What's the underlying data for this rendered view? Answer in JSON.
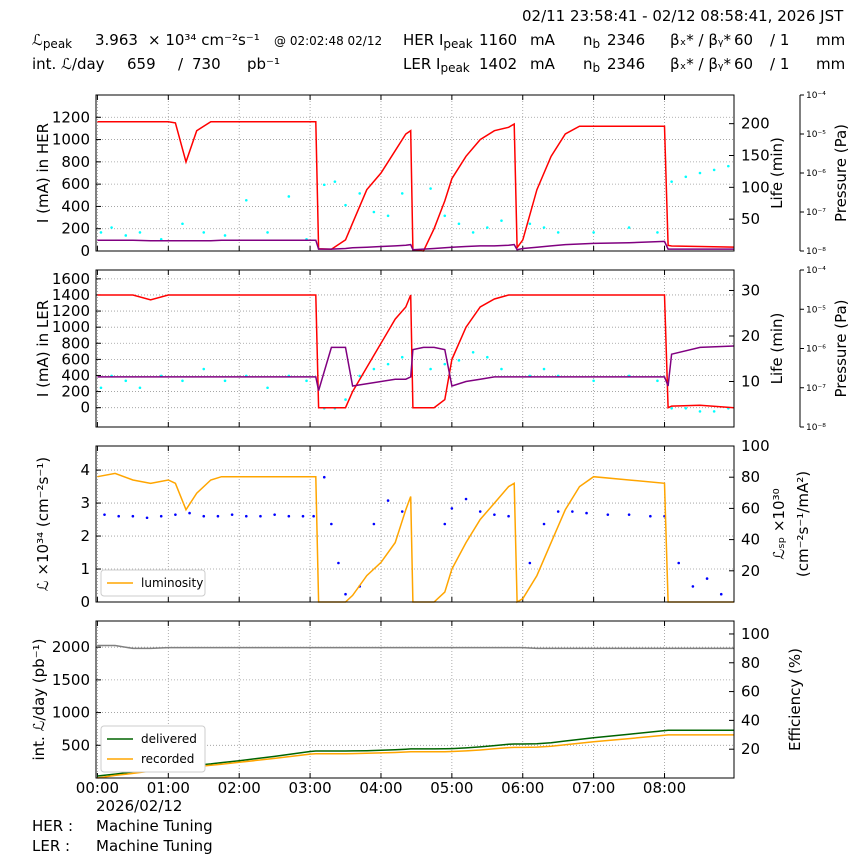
{
  "header": {
    "time_range": "02/11 23:58:41 - 02/12 08:58:41, 2026 JST",
    "lpeak": {
      "label": "ℒ",
      "sub": "peak",
      "value": 3.963,
      "unit": "× 10³⁴ cm⁻²s⁻¹",
      "time": "@ 02:02:48 02/12"
    },
    "int_lumi": {
      "label": "int. ℒ/day",
      "recorded": 659,
      "sep": "/",
      "delivered": 730,
      "unit": "pb⁻¹"
    },
    "her": {
      "label": "HER I",
      "sub": "peak",
      "current": 1160,
      "unit": "mA",
      "nb_label": "n",
      "nb_sub": "b",
      "nb": 2346,
      "beta_label": "βₓ* / βᵧ*",
      "beta_x": 60,
      "beta_y": "/ 1",
      "beta_unit": "mm"
    },
    "ler": {
      "label": "LER I",
      "sub": "peak",
      "current": 1402,
      "unit": "mA",
      "nb_label": "n",
      "nb_sub": "b",
      "nb": 2346,
      "beta_label": "βₓ* / βᵧ*",
      "beta_x": 60,
      "beta_y": "/ 1",
      "beta_unit": "mm"
    }
  },
  "footer": {
    "date": "2026/02/12",
    "her_label": "HER :",
    "her_status": "Machine Tuning",
    "ler_label": "LER :",
    "ler_status": "Machine Tuning"
  },
  "chart_data": [
    {
      "type": "line",
      "ylabel": "I (mA) in HER",
      "y2label": "Life (min)",
      "y3label": "Pressure (Pa)",
      "grid": true,
      "x": [
        0,
        0.25,
        0.5,
        0.75,
        1,
        1.1,
        1.25,
        1.4,
        1.6,
        1.75,
        2,
        2.5,
        3,
        3.08,
        3.12,
        3.3,
        3.5,
        3.6,
        3.8,
        4,
        4.2,
        4.35,
        4.42,
        4.45,
        4.6,
        4.75,
        4.9,
        5,
        5.2,
        5.4,
        5.6,
        5.8,
        5.88,
        5.92,
        6,
        6.2,
        6.4,
        6.6,
        6.8,
        7,
        7.5,
        8,
        8.05,
        8.1,
        8.5,
        8.98
      ],
      "xlim": [
        -0.02,
        8.98
      ],
      "xticks": [
        0,
        1,
        2,
        3,
        4,
        5,
        6,
        7,
        8
      ],
      "ylim": [
        0,
        1400
      ],
      "yticks": [
        0,
        200,
        400,
        600,
        800,
        1000,
        1200
      ],
      "y2lim": [
        0,
        245
      ],
      "y2ticks": [
        50,
        100,
        150,
        200
      ],
      "y3lim": [
        1e-08,
        0.0001
      ],
      "y3log": true,
      "y3ticks": [
        {
          "value": 1e-08,
          "label": "10⁻⁸"
        },
        {
          "value": 1e-07,
          "label": "10⁻⁷"
        },
        {
          "value": 1e-06,
          "label": "10⁻⁶"
        },
        {
          "value": 1e-05,
          "label": "10⁻⁵"
        },
        {
          "value": 0.0001,
          "label": "10⁻⁴"
        }
      ],
      "series": [
        {
          "color": "#00ffff",
          "axis": "y3",
          "mode": "markers",
          "x": [
            0.05,
            0.2,
            0.4,
            0.6,
            0.9,
            1.2,
            1.5,
            1.8,
            2.1,
            2.4,
            2.7,
            2.95,
            3.2,
            3.35,
            3.5,
            3.7,
            3.9,
            4.1,
            4.3,
            4.7,
            4.9,
            5.1,
            5.3,
            5.5,
            5.7,
            6.1,
            6.3,
            6.5,
            7.0,
            7.5,
            7.9,
            8.1,
            8.3,
            8.5,
            8.7,
            8.9
          ],
          "values": [
            3e-08,
            4e-08,
            2.5e-08,
            3e-08,
            2e-08,
            5e-08,
            3e-08,
            2.5e-08,
            2e-07,
            3e-08,
            2.5e-07,
            2e-08,
            5e-07,
            6e-07,
            1.5e-07,
            3e-07,
            1e-07,
            8e-08,
            3e-07,
            4e-07,
            8e-08,
            5e-08,
            3e-08,
            4e-08,
            6e-08,
            5e-08,
            4e-08,
            3e-08,
            3e-08,
            4e-08,
            3e-08,
            6e-07,
            8e-07,
            1e-06,
            1.2e-06,
            1.5e-06
          ]
        },
        {
          "color": "#ff0000",
          "axis": "y",
          "values": [
            1160,
            1160,
            1160,
            1160,
            1160,
            1150,
            800,
            1080,
            1160,
            1160,
            1160,
            1160,
            1160,
            1160,
            20,
            15,
            100,
            250,
            550,
            700,
            900,
            1050,
            1080,
            10,
            0,
            200,
            450,
            650,
            850,
            1000,
            1080,
            1110,
            1140,
            30,
            100,
            550,
            850,
            1050,
            1120,
            1120,
            1120,
            1120,
            50,
            45,
            40,
            35
          ]
        },
        {
          "color": "#800080",
          "axis": "y2",
          "values": [
            17,
            17,
            17,
            16,
            16,
            16,
            16,
            16,
            16,
            17,
            17,
            17,
            17,
            17,
            3,
            3,
            4,
            5,
            6,
            7,
            8,
            9,
            10,
            2,
            3,
            4,
            5,
            6,
            7,
            8,
            8,
            9,
            10,
            2,
            4,
            6,
            8,
            10,
            11,
            12,
            13,
            15,
            3,
            3,
            3,
            3
          ]
        }
      ]
    },
    {
      "type": "line",
      "ylabel": "I (mA) in LER",
      "y2label": "Life (min)",
      "y3label": "Pressure (Pa)",
      "grid": true,
      "x": [
        0,
        0.25,
        0.5,
        0.75,
        1,
        1.1,
        1.25,
        1.4,
        1.6,
        1.75,
        2,
        2.5,
        3,
        3.08,
        3.12,
        3.3,
        3.5,
        3.6,
        3.8,
        4,
        4.2,
        4.35,
        4.42,
        4.45,
        4.6,
        4.75,
        4.9,
        5,
        5.2,
        5.4,
        5.6,
        5.8,
        5.88,
        5.92,
        6,
        6.2,
        6.4,
        6.6,
        6.8,
        7,
        7.5,
        8,
        8.05,
        8.1,
        8.5,
        8.98
      ],
      "xlim": [
        -0.02,
        8.98
      ],
      "xticks": [
        0,
        1,
        2,
        3,
        4,
        5,
        6,
        7,
        8
      ],
      "ylim": [
        -240,
        1710
      ],
      "yticks": [
        0,
        200,
        400,
        600,
        800,
        1000,
        1200,
        1400,
        1600
      ],
      "y2lim": [
        0,
        34.5
      ],
      "y2ticks": [
        10,
        20,
        30
      ],
      "y3lim": [
        1e-08,
        0.0001
      ],
      "y3log": true,
      "y3ticks": [
        {
          "value": 1e-08,
          "label": "10⁻⁸"
        },
        {
          "value": 1e-07,
          "label": "10⁻⁷"
        },
        {
          "value": 1e-06,
          "label": "10⁻⁶"
        },
        {
          "value": 1e-05,
          "label": "10⁻⁵"
        },
        {
          "value": 0.0001,
          "label": "10⁻⁴"
        }
      ],
      "series": [
        {
          "color": "#00ffff",
          "axis": "y3",
          "mode": "markers",
          "x": [
            0.05,
            0.2,
            0.4,
            0.6,
            0.9,
            1.2,
            1.5,
            1.8,
            2.1,
            2.4,
            2.7,
            2.95,
            3.2,
            3.35,
            3.5,
            3.7,
            3.9,
            4.1,
            4.3,
            4.7,
            4.9,
            5.1,
            5.3,
            5.5,
            5.7,
            6.1,
            6.3,
            6.5,
            7.0,
            7.5,
            7.9,
            8.1,
            8.3,
            8.5,
            8.7,
            8.9
          ],
          "values": [
            1e-07,
            2e-07,
            1.5e-07,
            1e-07,
            2e-07,
            1.5e-07,
            3e-07,
            1.5e-07,
            2e-07,
            1e-07,
            2e-07,
            1.5e-07,
            3e-08,
            3e-08,
            5e-08,
            2e-07,
            3e-07,
            4e-07,
            6e-07,
            3e-07,
            4e-07,
            5e-07,
            8e-07,
            6e-07,
            3e-07,
            2e-07,
            3e-07,
            2e-07,
            1.5e-07,
            2e-07,
            1.5e-07,
            3e-08,
            3e-08,
            2.5e-08,
            2.5e-08,
            3e-08
          ]
        },
        {
          "color": "#ff0000",
          "axis": "y",
          "values": [
            1400,
            1400,
            1400,
            1340,
            1400,
            1400,
            1400,
            1400,
            1400,
            1400,
            1400,
            1400,
            1400,
            1400,
            0,
            0,
            0,
            200,
            500,
            800,
            1100,
            1250,
            1400,
            0,
            0,
            0,
            100,
            600,
            1000,
            1250,
            1350,
            1400,
            1400,
            1400,
            1400,
            1400,
            1400,
            1400,
            1400,
            1400,
            1400,
            1400,
            0,
            20,
            30,
            0
          ]
        },
        {
          "color": "#800080",
          "axis": "y2",
          "values": [
            11,
            11,
            11,
            11,
            11,
            11,
            11,
            11,
            11,
            11,
            11,
            11,
            11,
            11,
            8,
            17.5,
            17.5,
            9,
            9.5,
            10,
            10.5,
            10.5,
            11,
            17,
            17.5,
            17.5,
            17,
            9,
            10,
            10.5,
            11,
            11,
            11,
            11,
            11,
            11,
            11,
            11,
            11,
            11,
            11,
            11,
            9,
            16,
            17.5,
            17.8
          ]
        }
      ]
    },
    {
      "type": "line",
      "ylabel": "ℒ ×10³⁴ (cm⁻²s⁻¹)",
      "y2label": [
        "ℒₛₚ ×10³⁰",
        "(cm⁻²s⁻¹/mA²)"
      ],
      "grid": true,
      "legend": "lower left",
      "x": [
        0,
        0.25,
        0.5,
        0.75,
        1,
        1.1,
        1.25,
        1.4,
        1.6,
        1.75,
        2,
        2.5,
        3,
        3.08,
        3.12,
        3.3,
        3.5,
        3.6,
        3.8,
        4,
        4.2,
        4.35,
        4.42,
        4.45,
        4.6,
        4.75,
        4.9,
        5,
        5.2,
        5.4,
        5.6,
        5.8,
        5.88,
        5.92,
        6,
        6.2,
        6.4,
        6.6,
        6.8,
        7,
        7.5,
        8,
        8.05,
        8.1,
        8.5,
        8.98
      ],
      "xlim": [
        -0.02,
        8.98
      ],
      "xticks": [
        0,
        1,
        2,
        3,
        4,
        5,
        6,
        7,
        8
      ],
      "ylim": [
        0,
        4.73
      ],
      "yticks": [
        0,
        1,
        2,
        3,
        4
      ],
      "y2lim": [
        0,
        100
      ],
      "y2ticks": [
        20,
        40,
        60,
        80,
        100
      ],
      "series": [
        {
          "color": "#0000ff",
          "axis": "y2",
          "mode": "markers",
          "x": [
            0.1,
            0.3,
            0.5,
            0.7,
            0.9,
            1.1,
            1.3,
            1.5,
            1.7,
            1.9,
            2.1,
            2.3,
            2.5,
            2.7,
            2.9,
            3.05,
            3.2,
            3.3,
            3.4,
            3.5,
            3.7,
            3.9,
            4.1,
            4.3,
            4.9,
            5.0,
            5.2,
            5.4,
            5.6,
            5.8,
            6.1,
            6.3,
            6.5,
            6.7,
            6.9,
            7.2,
            7.5,
            7.8,
            8.0,
            8.2,
            8.4,
            8.6,
            8.8
          ],
          "values": [
            56,
            55,
            55,
            54,
            55,
            56,
            57,
            55,
            55,
            56,
            55,
            55,
            56,
            55,
            55,
            55,
            80,
            50,
            25,
            5,
            10,
            50,
            65,
            58,
            50,
            60,
            66,
            58,
            56,
            55,
            25,
            50,
            58,
            58,
            57,
            56,
            56,
            55,
            55,
            25,
            10,
            15,
            5
          ]
        },
        {
          "name": "luminosity",
          "color": "#ffa500",
          "axis": "y",
          "values": [
            3.8,
            3.9,
            3.7,
            3.6,
            3.7,
            3.6,
            2.8,
            3.3,
            3.7,
            3.8,
            3.8,
            3.8,
            3.8,
            3.8,
            0,
            0,
            0,
            0.2,
            0.8,
            1.2,
            1.8,
            2.8,
            3.2,
            0,
            0,
            0,
            0.3,
            1.0,
            1.8,
            2.5,
            3.0,
            3.5,
            3.6,
            0,
            0.1,
            0.8,
            1.8,
            2.8,
            3.5,
            3.8,
            3.7,
            3.6,
            0,
            0,
            0,
            0
          ]
        }
      ]
    },
    {
      "type": "line",
      "ylabel": "int. ℒ/day (pb⁻¹)",
      "y2label": "Efficiency (%)",
      "grid": true,
      "legend": "lower left",
      "x": [
        0,
        0.25,
        0.5,
        0.75,
        1,
        1.1,
        1.25,
        1.4,
        1.6,
        1.75,
        2,
        2.5,
        3,
        3.08,
        3.12,
        3.3,
        3.5,
        3.6,
        3.8,
        4,
        4.2,
        4.35,
        4.42,
        4.45,
        4.6,
        4.75,
        4.9,
        5,
        5.2,
        5.4,
        5.6,
        5.8,
        5.88,
        5.92,
        6,
        6.2,
        6.4,
        6.6,
        6.8,
        7,
        7.5,
        8,
        8.05,
        8.1,
        8.5,
        8.98
      ],
      "xlim": [
        -0.02,
        8.98
      ],
      "xticks": [
        {
          "value": 0,
          "label": "00:00"
        },
        {
          "value": 1,
          "label": "01:00"
        },
        {
          "value": 2,
          "label": "02:00"
        },
        {
          "value": 3,
          "label": "03:00"
        },
        {
          "value": 4,
          "label": "04:00"
        },
        {
          "value": 5,
          "label": "05:00"
        },
        {
          "value": 6,
          "label": "06:00"
        },
        {
          "value": 7,
          "label": "07:00"
        },
        {
          "value": 8,
          "label": "08:00"
        }
      ],
      "ylim": [
        0,
        2400
      ],
      "yticks": [
        500,
        1000,
        1500,
        2000
      ],
      "y2lim": [
        0,
        109
      ],
      "y2ticks": [
        20,
        40,
        60,
        80,
        100
      ],
      "series": [
        {
          "color": "#808080",
          "axis": "y2",
          "values": [
            92,
            92,
            90,
            90,
            90.5,
            90.5,
            90.5,
            90.5,
            90.5,
            90.5,
            90.5,
            90.5,
            90.5,
            90.5,
            90.5,
            90.5,
            90.5,
            90.5,
            90.5,
            90.5,
            90.5,
            90.5,
            90.5,
            90.5,
            90.5,
            90.5,
            90.5,
            90.5,
            90.5,
            90.5,
            90.5,
            90.5,
            90.5,
            90.5,
            90.5,
            90,
            90,
            90,
            90,
            90,
            90,
            90,
            90,
            90,
            90,
            90
          ]
        },
        {
          "name": "delivered",
          "color": "#006400",
          "axis": "y",
          "values": [
            30,
            60,
            90,
            125,
            155,
            165,
            180,
            195,
            215,
            235,
            265,
            330,
            405,
            413,
            413,
            413,
            413,
            414,
            418,
            425,
            432,
            440,
            445,
            445,
            445,
            445,
            446,
            450,
            460,
            475,
            495,
            515,
            520,
            520,
            520,
            525,
            540,
            565,
            590,
            615,
            670,
            725,
            730,
            730,
            730,
            730
          ]
        },
        {
          "name": "recorded",
          "color": "#ffa500",
          "axis": "y",
          "values": [
            0,
            40,
            70,
            105,
            135,
            145,
            160,
            175,
            195,
            210,
            240,
            300,
            365,
            372,
            372,
            372,
            372,
            373,
            377,
            383,
            390,
            397,
            401,
            401,
            401,
            401,
            402,
            405,
            414,
            428,
            446,
            464,
            468,
            468,
            468,
            473,
            486,
            509,
            531,
            554,
            603,
            653,
            659,
            659,
            659,
            659
          ]
        }
      ]
    }
  ]
}
